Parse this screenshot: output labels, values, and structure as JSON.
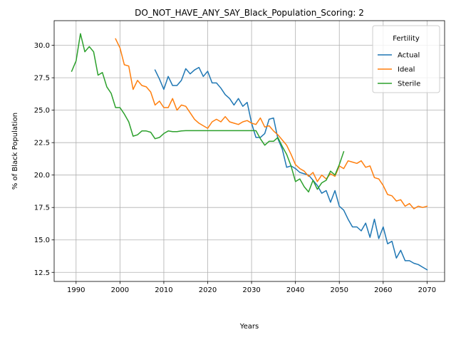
{
  "chart_data": {
    "type": "line",
    "title": "DO_NOT_HAVE_ANY_SAY_Black_Population_Scoring: 2",
    "xlabel": "Years",
    "ylabel": "% of Black Population",
    "xlim": [
      1985,
      2074
    ],
    "ylim": [
      11.8,
      31.9
    ],
    "xticks": [
      1990,
      2000,
      2010,
      2020,
      2030,
      2040,
      2050,
      2060,
      2070
    ],
    "yticks": [
      12.5,
      15.0,
      17.5,
      20.0,
      22.5,
      25.0,
      27.5,
      30.0
    ],
    "ytick_labels": [
      "12.5",
      "15.0",
      "17.5",
      "20.0",
      "22.5",
      "25.0",
      "27.5",
      "30.0"
    ],
    "grid": true,
    "legend": {
      "title": "Fertility",
      "position": "top-right"
    },
    "series": [
      {
        "name": "Actual",
        "color": "#1f77b4",
        "x": [
          2008,
          2009,
          2010,
          2011,
          2012,
          2013,
          2014,
          2015,
          2016,
          2017,
          2018,
          2019,
          2020,
          2021,
          2022,
          2023,
          2024,
          2025,
          2026,
          2027,
          2028,
          2029,
          2030,
          2031,
          2032,
          2033,
          2034,
          2035,
          2036,
          2037,
          2038,
          2039,
          2040,
          2041,
          2042,
          2043,
          2044,
          2045,
          2046,
          2047,
          2048,
          2049,
          2050,
          2051,
          2052,
          2053,
          2054,
          2055,
          2056,
          2057,
          2058,
          2059,
          2060,
          2061,
          2062,
          2063,
          2064,
          2065,
          2066,
          2067,
          2068,
          2069,
          2070
        ],
        "values": [
          28.1,
          27.4,
          26.6,
          27.6,
          26.9,
          26.9,
          27.3,
          28.2,
          27.8,
          28.1,
          28.3,
          27.6,
          28.0,
          27.1,
          27.1,
          26.7,
          26.2,
          25.9,
          25.4,
          25.9,
          25.3,
          25.6,
          24.0,
          22.9,
          22.9,
          23.2,
          24.3,
          24.4,
          22.8,
          22.0,
          20.6,
          20.7,
          20.5,
          20.2,
          20.1,
          20.0,
          19.6,
          19.2,
          18.6,
          18.8,
          17.9,
          18.8,
          17.6,
          17.3,
          16.6,
          16.0,
          16.0,
          15.7,
          16.3,
          15.2,
          16.6,
          15.1,
          16.0,
          14.7,
          14.9,
          13.6,
          14.2,
          13.4,
          13.4,
          13.2,
          13.1,
          12.9,
          12.7
        ]
      },
      {
        "name": "Ideal",
        "color": "#ff7f0e",
        "x": [
          1999,
          2000,
          2001,
          2002,
          2003,
          2004,
          2005,
          2006,
          2007,
          2008,
          2009,
          2010,
          2011,
          2012,
          2013,
          2014,
          2015,
          2016,
          2017,
          2018,
          2019,
          2020,
          2021,
          2022,
          2023,
          2024,
          2025,
          2026,
          2027,
          2028,
          2029,
          2030,
          2031,
          2032,
          2033,
          2034,
          2035,
          2036,
          2037,
          2038,
          2039,
          2040,
          2041,
          2042,
          2043,
          2044,
          2045,
          2046,
          2047,
          2048,
          2049,
          2050,
          2051,
          2052,
          2053,
          2054,
          2055,
          2056,
          2057,
          2058,
          2059,
          2060,
          2061,
          2062,
          2063,
          2064,
          2065,
          2066,
          2067,
          2068,
          2069,
          2070
        ],
        "values": [
          30.5,
          29.8,
          28.5,
          28.4,
          26.6,
          27.3,
          26.9,
          26.8,
          26.4,
          25.4,
          25.7,
          25.2,
          25.2,
          25.9,
          25.0,
          25.4,
          25.3,
          24.8,
          24.3,
          24.0,
          23.8,
          23.6,
          24.1,
          24.3,
          24.1,
          24.5,
          24.1,
          24.0,
          23.9,
          24.1,
          24.2,
          24.0,
          23.9,
          24.4,
          23.7,
          23.8,
          23.4,
          23.1,
          22.7,
          22.3,
          21.6,
          20.8,
          20.5,
          20.3,
          19.9,
          20.2,
          19.5,
          20.0,
          19.7,
          20.1,
          19.9,
          20.7,
          20.5,
          21.1,
          21.0,
          20.9,
          21.1,
          20.6,
          20.7,
          19.8,
          19.7,
          19.2,
          18.5,
          18.4,
          18.0,
          18.1,
          17.6,
          17.8,
          17.4,
          17.6,
          17.5,
          17.6
        ]
      },
      {
        "name": "Sterile",
        "color": "#2ca02c",
        "x": [
          1989,
          1990,
          1991,
          1992,
          1993,
          1994,
          1995,
          1996,
          1997,
          1998,
          1999,
          2000,
          2001,
          2002,
          2003,
          2004,
          2005,
          2006,
          2007,
          2008,
          2009,
          2010,
          2011,
          2012,
          2013,
          2014,
          2015,
          2016,
          2017,
          2018,
          2019,
          2020,
          2021,
          2022,
          2023,
          2024,
          2025,
          2026,
          2027,
          2028,
          2029,
          2030,
          2031,
          2032,
          2033,
          2034,
          2035,
          2036,
          2037,
          2038,
          2039,
          2040,
          2041,
          2042,
          2043,
          2044,
          2045,
          2046,
          2047,
          2048,
          2049,
          2050,
          2051
        ],
        "values": [
          28.0,
          28.8,
          30.9,
          29.5,
          29.9,
          29.5,
          27.7,
          27.9,
          26.8,
          26.3,
          25.2,
          25.2,
          24.7,
          24.1,
          23.0,
          23.1,
          23.4,
          23.4,
          23.3,
          22.8,
          22.9,
          23.2,
          23.4,
          23.35,
          23.35,
          23.4,
          23.42,
          23.42,
          23.42,
          23.42,
          23.42,
          23.42,
          23.42,
          23.42,
          23.42,
          23.42,
          23.42,
          23.42,
          23.42,
          23.42,
          23.42,
          23.42,
          23.42,
          22.8,
          22.3,
          22.6,
          22.6,
          22.9,
          22.2,
          21.6,
          20.7,
          19.5,
          19.7,
          19.1,
          18.7,
          19.6,
          18.9,
          19.4,
          19.6,
          20.3,
          20.0,
          20.8,
          21.8
        ]
      }
    ]
  }
}
